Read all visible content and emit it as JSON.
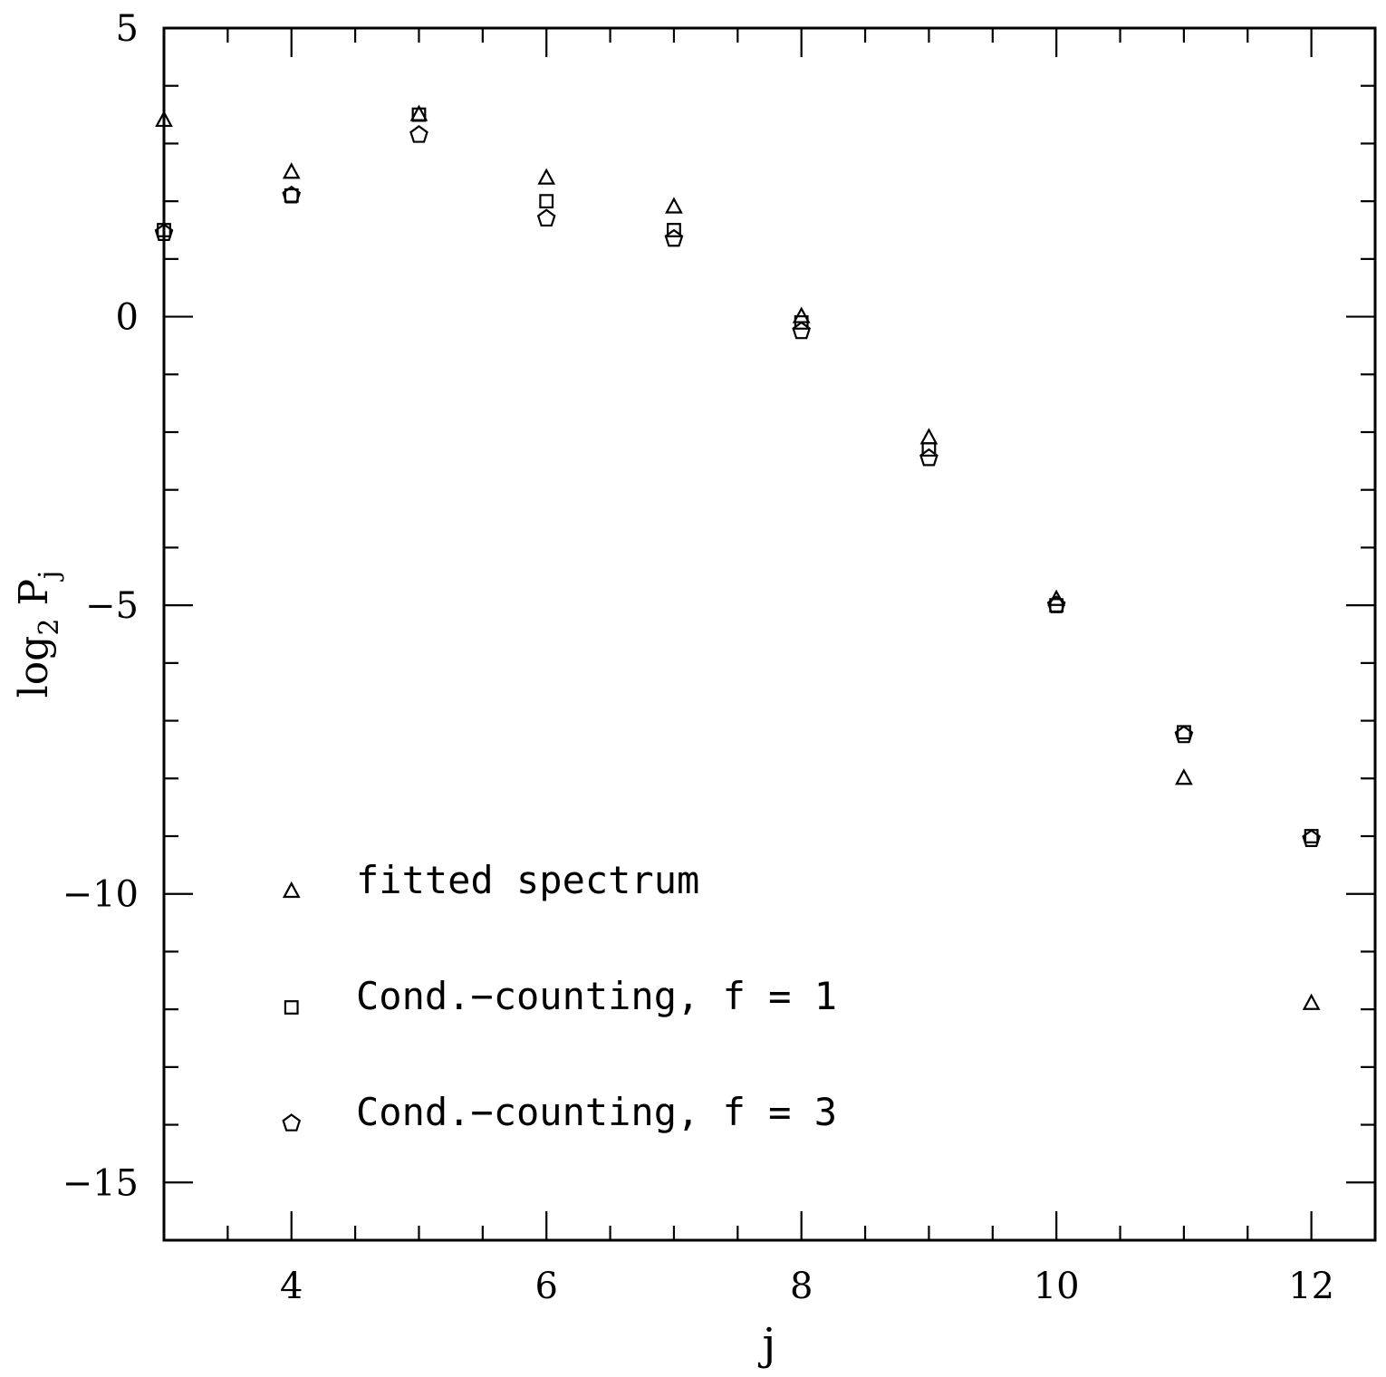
{
  "chart_data": {
    "type": "scatter",
    "xlabel": "j",
    "ylabel": {
      "main": "log",
      "sub": "2",
      "var": "P",
      "var_sub": "j"
    },
    "xlim": [
      3,
      12.5
    ],
    "ylim": [
      -16,
      5
    ],
    "x_ticks": [
      4,
      6,
      8,
      10,
      12
    ],
    "x_tick_labels": [
      "4",
      "6",
      "8",
      "10",
      "12"
    ],
    "y_ticks": [
      5,
      0,
      -5,
      -10,
      -15
    ],
    "y_tick_labels": [
      "5",
      "0",
      "−5",
      "−10",
      "−15"
    ],
    "x_minor_step": 0.5,
    "y_minor_step": 1,
    "grid": false,
    "legend_position": "bottom-left",
    "series": [
      {
        "name": "fitted spectrum",
        "marker": "triangle",
        "x": [
          3,
          4,
          5,
          6,
          7,
          8,
          9,
          10,
          11,
          12
        ],
        "y": [
          3.4,
          2.5,
          3.5,
          2.4,
          1.9,
          0.0,
          -2.1,
          -4.9,
          -8.0,
          -11.9
        ]
      },
      {
        "name": "Cond.−counting, f = 1",
        "marker": "square",
        "x": [
          3,
          4,
          5,
          6,
          7,
          8,
          9,
          10,
          11,
          12
        ],
        "y": [
          1.5,
          2.1,
          3.5,
          2.0,
          1.5,
          -0.1,
          -2.3,
          -5.0,
          -7.2,
          -9.0
        ]
      },
      {
        "name": "Cond.−counting, f = 3",
        "marker": "pentagon",
        "x": [
          3,
          4,
          5,
          6,
          7,
          8,
          9,
          10,
          11,
          12
        ],
        "y": [
          1.45,
          2.1,
          3.15,
          1.7,
          1.35,
          -0.25,
          -2.45,
          -5.0,
          -7.25,
          -9.05
        ]
      }
    ]
  }
}
